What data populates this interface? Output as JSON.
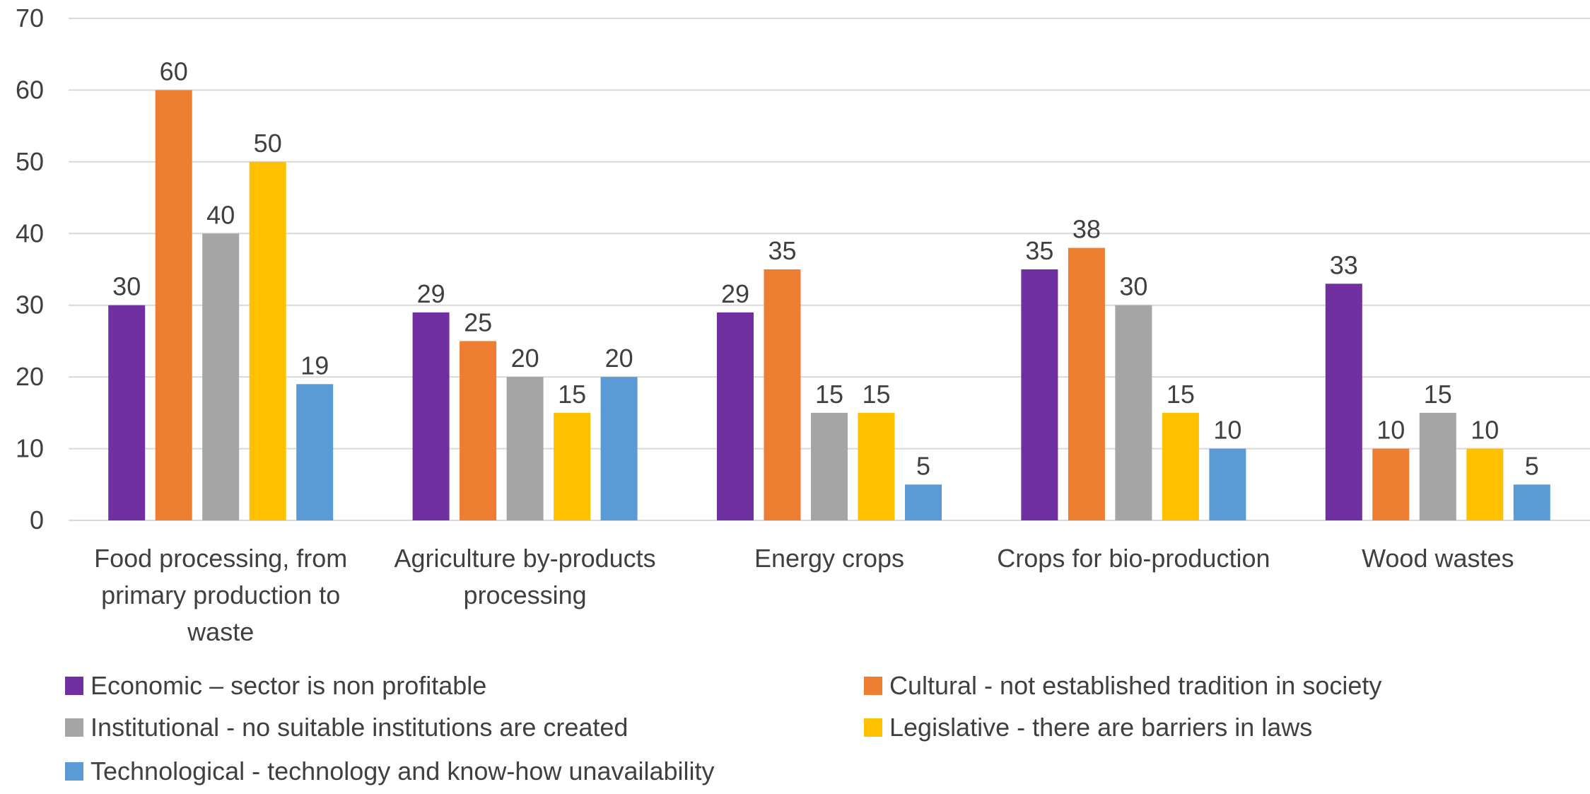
{
  "chart_data": {
    "type": "bar",
    "categories": [
      [
        "Food processing, from",
        "primary production to",
        "waste"
      ],
      [
        "Agriculture by-products",
        "processing"
      ],
      [
        "Energy crops"
      ],
      [
        "Crops for bio-production"
      ],
      [
        "Wood wastes"
      ]
    ],
    "series": [
      {
        "name": "Economic – sector is non profitable",
        "color": "#7030A0",
        "values": [
          30,
          29,
          29,
          35,
          33
        ]
      },
      {
        "name": "Cultural - not established tradition in society",
        "color": "#ED7D31",
        "values": [
          60,
          25,
          35,
          38,
          10
        ]
      },
      {
        "name": "Institutional - no suitable institutions are created",
        "color": "#A5A5A5",
        "values": [
          40,
          20,
          15,
          30,
          15
        ]
      },
      {
        "name": "Legislative - there are  barriers in laws",
        "color": "#FFC000",
        "values": [
          50,
          15,
          15,
          15,
          10
        ]
      },
      {
        "name": "Technological - technology and know-how unavailability",
        "color": "#5B9BD5",
        "values": [
          19,
          20,
          5,
          10,
          5
        ]
      }
    ],
    "ylim": [
      0,
      70
    ],
    "yticks": [
      0,
      10,
      20,
      30,
      40,
      50,
      60,
      70
    ],
    "grid": true,
    "data_labels": true,
    "legend_position": "bottom",
    "gridline_color": "#D9D9D9",
    "text_color": "#404040"
  }
}
